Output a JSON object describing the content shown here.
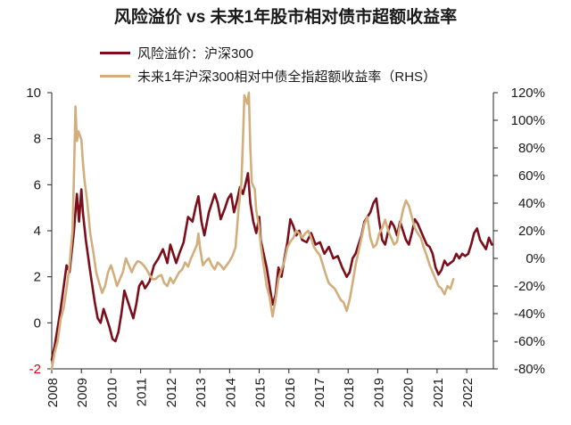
{
  "colors": {
    "series_a": "#7B0E1A",
    "series_b": "#D2AE7C",
    "neg_label": "#E00000",
    "axis": "#222222"
  },
  "chart_data": {
    "type": "line",
    "title": "风险溢价 vs 未来1年股市相对债市超额收益率",
    "legend_position": "top-left",
    "grid": false,
    "x_range": [
      2008,
      2022.9
    ],
    "x_ticks": [
      "2008",
      "2009",
      "2010",
      "2011",
      "2012",
      "2013",
      "2014",
      "2015",
      "2016",
      "2017",
      "2018",
      "2019",
      "2020",
      "2021",
      "2022"
    ],
    "y_left": {
      "range": [
        -2,
        10
      ],
      "ticks": [
        "-2",
        "0",
        "2",
        "4",
        "6",
        "8",
        "10"
      ]
    },
    "y_right": {
      "range": [
        -80,
        120
      ],
      "unit": "%",
      "ticks": [
        "-80%",
        "-60%",
        "-40%",
        "-20%",
        "0%",
        "20%",
        "40%",
        "60%",
        "80%",
        "100%",
        "120%"
      ]
    },
    "series": [
      {
        "name": "风险溢价：沪深300",
        "axis": "left",
        "points": [
          [
            2008.0,
            -1.6
          ],
          [
            2008.1,
            -1.0
          ],
          [
            2008.3,
            0.6
          ],
          [
            2008.5,
            2.5
          ],
          [
            2008.6,
            2.2
          ],
          [
            2008.75,
            4.0
          ],
          [
            2008.85,
            5.6
          ],
          [
            2008.92,
            4.4
          ],
          [
            2009.0,
            5.8
          ],
          [
            2009.05,
            4.8
          ],
          [
            2009.15,
            3.6
          ],
          [
            2009.3,
            2.2
          ],
          [
            2009.45,
            0.9
          ],
          [
            2009.55,
            0.2
          ],
          [
            2009.65,
            0.0
          ],
          [
            2009.75,
            0.6
          ],
          [
            2009.85,
            0.2
          ],
          [
            2009.95,
            -0.2
          ],
          [
            2010.05,
            -0.7
          ],
          [
            2010.15,
            -0.8
          ],
          [
            2010.25,
            -0.4
          ],
          [
            2010.35,
            0.4
          ],
          [
            2010.45,
            1.4
          ],
          [
            2010.55,
            1.0
          ],
          [
            2010.65,
            0.6
          ],
          [
            2010.75,
            0.2
          ],
          [
            2010.85,
            0.8
          ],
          [
            2010.95,
            1.6
          ],
          [
            2011.05,
            1.8
          ],
          [
            2011.15,
            1.5
          ],
          [
            2011.3,
            1.8
          ],
          [
            2011.45,
            2.5
          ],
          [
            2011.6,
            2.8
          ],
          [
            2011.75,
            3.2
          ],
          [
            2011.9,
            2.6
          ],
          [
            2012.0,
            3.4
          ],
          [
            2012.1,
            3.0
          ],
          [
            2012.2,
            2.6
          ],
          [
            2012.3,
            3.0
          ],
          [
            2012.45,
            3.5
          ],
          [
            2012.6,
            4.6
          ],
          [
            2012.75,
            4.4
          ],
          [
            2012.85,
            5.0
          ],
          [
            2012.95,
            5.5
          ],
          [
            2013.05,
            4.4
          ],
          [
            2013.15,
            3.8
          ],
          [
            2013.3,
            4.8
          ],
          [
            2013.5,
            5.6
          ],
          [
            2013.6,
            5.2
          ],
          [
            2013.7,
            4.5
          ],
          [
            2013.85,
            5.0
          ],
          [
            2013.95,
            5.4
          ],
          [
            2014.05,
            5.6
          ],
          [
            2014.15,
            4.8
          ],
          [
            2014.25,
            5.3
          ],
          [
            2014.35,
            5.9
          ],
          [
            2014.45,
            5.6
          ],
          [
            2014.55,
            6.1
          ],
          [
            2014.62,
            6.5
          ],
          [
            2014.7,
            5.2
          ],
          [
            2014.8,
            4.4
          ],
          [
            2014.9,
            3.9
          ],
          [
            2015.0,
            4.6
          ],
          [
            2015.05,
            3.6
          ],
          [
            2015.15,
            3.0
          ],
          [
            2015.25,
            2.4
          ],
          [
            2015.35,
            1.6
          ],
          [
            2015.45,
            0.8
          ],
          [
            2015.55,
            1.2
          ],
          [
            2015.65,
            2.4
          ],
          [
            2015.75,
            2.0
          ],
          [
            2015.85,
            2.8
          ],
          [
            2015.95,
            3.5
          ],
          [
            2016.05,
            4.5
          ],
          [
            2016.15,
            4.2
          ],
          [
            2016.25,
            3.8
          ],
          [
            2016.35,
            4.0
          ],
          [
            2016.45,
            3.6
          ],
          [
            2016.6,
            3.5
          ],
          [
            2016.75,
            3.9
          ],
          [
            2016.9,
            3.4
          ],
          [
            2017.05,
            3.5
          ],
          [
            2017.2,
            3.0
          ],
          [
            2017.35,
            3.3
          ],
          [
            2017.5,
            2.8
          ],
          [
            2017.65,
            2.9
          ],
          [
            2017.8,
            2.4
          ],
          [
            2017.95,
            2.0
          ],
          [
            2018.05,
            2.2
          ],
          [
            2018.15,
            2.8
          ],
          [
            2018.25,
            3.0
          ],
          [
            2018.35,
            3.4
          ],
          [
            2018.45,
            3.8
          ],
          [
            2018.55,
            4.4
          ],
          [
            2018.65,
            4.6
          ],
          [
            2018.75,
            4.8
          ],
          [
            2018.85,
            5.2
          ],
          [
            2018.95,
            5.4
          ],
          [
            2019.05,
            4.4
          ],
          [
            2019.15,
            3.6
          ],
          [
            2019.25,
            3.4
          ],
          [
            2019.35,
            4.0
          ],
          [
            2019.45,
            4.4
          ],
          [
            2019.55,
            4.2
          ],
          [
            2019.65,
            3.8
          ],
          [
            2019.75,
            4.4
          ],
          [
            2019.85,
            4.0
          ],
          [
            2019.95,
            3.6
          ],
          [
            2020.05,
            3.4
          ],
          [
            2020.15,
            3.9
          ],
          [
            2020.25,
            4.5
          ],
          [
            2020.35,
            4.3
          ],
          [
            2020.45,
            4.0
          ],
          [
            2020.55,
            3.7
          ],
          [
            2020.65,
            3.4
          ],
          [
            2020.75,
            3.3
          ],
          [
            2020.85,
            3.0
          ],
          [
            2020.95,
            2.4
          ],
          [
            2021.05,
            2.1
          ],
          [
            2021.15,
            2.3
          ],
          [
            2021.25,
            2.7
          ],
          [
            2021.35,
            2.5
          ],
          [
            2021.45,
            2.6
          ],
          [
            2021.55,
            2.7
          ],
          [
            2021.65,
            3.0
          ],
          [
            2021.75,
            2.8
          ],
          [
            2021.85,
            3.0
          ],
          [
            2021.95,
            2.9
          ],
          [
            2022.05,
            3.0
          ],
          [
            2022.15,
            3.4
          ],
          [
            2022.25,
            3.9
          ],
          [
            2022.35,
            4.1
          ],
          [
            2022.45,
            3.6
          ],
          [
            2022.55,
            3.4
          ],
          [
            2022.65,
            3.2
          ],
          [
            2022.75,
            3.7
          ],
          [
            2022.85,
            3.4
          ]
        ]
      },
      {
        "name": "未来1年沪深300相对中债全指超额收益率（RHS）",
        "axis": "right",
        "points": [
          [
            2008.0,
            -80
          ],
          [
            2008.1,
            -68
          ],
          [
            2008.2,
            -60
          ],
          [
            2008.3,
            -44
          ],
          [
            2008.4,
            -36
          ],
          [
            2008.5,
            -22
          ],
          [
            2008.6,
            -5
          ],
          [
            2008.7,
            20
          ],
          [
            2008.75,
            60
          ],
          [
            2008.8,
            110
          ],
          [
            2008.85,
            85
          ],
          [
            2008.9,
            92
          ],
          [
            2009.0,
            86
          ],
          [
            2009.05,
            70
          ],
          [
            2009.1,
            58
          ],
          [
            2009.2,
            40
          ],
          [
            2009.3,
            18
          ],
          [
            2009.4,
            5
          ],
          [
            2009.5,
            -10
          ],
          [
            2009.6,
            -18
          ],
          [
            2009.7,
            -25
          ],
          [
            2009.8,
            -20
          ],
          [
            2009.9,
            -10
          ],
          [
            2010.0,
            -5
          ],
          [
            2010.1,
            -12
          ],
          [
            2010.2,
            -20
          ],
          [
            2010.3,
            -15
          ],
          [
            2010.4,
            -10
          ],
          [
            2010.5,
            0
          ],
          [
            2010.6,
            -5
          ],
          [
            2010.7,
            -10
          ],
          [
            2010.8,
            -5
          ],
          [
            2010.9,
            -2
          ],
          [
            2011.0,
            -3
          ],
          [
            2011.1,
            -5
          ],
          [
            2011.2,
            -8
          ],
          [
            2011.3,
            -12
          ],
          [
            2011.4,
            -15
          ],
          [
            2011.5,
            -15
          ],
          [
            2011.6,
            -13
          ],
          [
            2011.7,
            -12
          ],
          [
            2011.8,
            -18
          ],
          [
            2011.9,
            -20
          ],
          [
            2012.0,
            -14
          ],
          [
            2012.1,
            -18
          ],
          [
            2012.2,
            -14
          ],
          [
            2012.3,
            -10
          ],
          [
            2012.4,
            -8
          ],
          [
            2012.5,
            -3
          ],
          [
            2012.6,
            -6
          ],
          [
            2012.7,
            0
          ],
          [
            2012.8,
            5
          ],
          [
            2012.9,
            10
          ],
          [
            2012.95,
            18
          ],
          [
            2013.0,
            8
          ],
          [
            2013.1,
            -5
          ],
          [
            2013.2,
            -2
          ],
          [
            2013.3,
            0
          ],
          [
            2013.4,
            -5
          ],
          [
            2013.5,
            -8
          ],
          [
            2013.6,
            -3
          ],
          [
            2013.7,
            -5
          ],
          [
            2013.8,
            -8
          ],
          [
            2013.9,
            -5
          ],
          [
            2014.0,
            -2
          ],
          [
            2014.1,
            2
          ],
          [
            2014.2,
            8
          ],
          [
            2014.3,
            35
          ],
          [
            2014.4,
            55
          ],
          [
            2014.45,
            85
          ],
          [
            2014.5,
            118
          ],
          [
            2014.55,
            115
          ],
          [
            2014.6,
            112
          ],
          [
            2014.65,
            120
          ],
          [
            2014.7,
            80
          ],
          [
            2014.75,
            55
          ],
          [
            2014.85,
            50
          ],
          [
            2014.9,
            35
          ],
          [
            2015.0,
            22
          ],
          [
            2015.05,
            10
          ],
          [
            2015.15,
            -5
          ],
          [
            2015.25,
            -20
          ],
          [
            2015.35,
            -28
          ],
          [
            2015.45,
            -42
          ],
          [
            2015.55,
            -30
          ],
          [
            2015.65,
            -15
          ],
          [
            2015.75,
            -8
          ],
          [
            2015.85,
            -2
          ],
          [
            2015.95,
            8
          ],
          [
            2016.05,
            12
          ],
          [
            2016.15,
            15
          ],
          [
            2016.25,
            20
          ],
          [
            2016.35,
            18
          ],
          [
            2016.45,
            15
          ],
          [
            2016.55,
            18
          ],
          [
            2016.65,
            20
          ],
          [
            2016.75,
            15
          ],
          [
            2016.85,
            8
          ],
          [
            2016.95,
            5
          ],
          [
            2017.05,
            2
          ],
          [
            2017.15,
            -5
          ],
          [
            2017.25,
            -12
          ],
          [
            2017.35,
            -18
          ],
          [
            2017.45,
            -20
          ],
          [
            2017.55,
            -22
          ],
          [
            2017.65,
            -26
          ],
          [
            2017.75,
            -30
          ],
          [
            2017.85,
            -32
          ],
          [
            2017.95,
            -38
          ],
          [
            2018.05,
            -30
          ],
          [
            2018.15,
            -18
          ],
          [
            2018.25,
            -5
          ],
          [
            2018.35,
            5
          ],
          [
            2018.45,
            15
          ],
          [
            2018.55,
            25
          ],
          [
            2018.65,
            30
          ],
          [
            2018.75,
            15
          ],
          [
            2018.85,
            8
          ],
          [
            2018.95,
            10
          ],
          [
            2019.05,
            18
          ],
          [
            2019.15,
            22
          ],
          [
            2019.25,
            28
          ],
          [
            2019.35,
            20
          ],
          [
            2019.45,
            15
          ],
          [
            2019.55,
            10
          ],
          [
            2019.65,
            12
          ],
          [
            2019.75,
            25
          ],
          [
            2019.85,
            35
          ],
          [
            2019.95,
            42
          ],
          [
            2020.05,
            38
          ],
          [
            2020.15,
            30
          ],
          [
            2020.25,
            22
          ],
          [
            2020.35,
            18
          ],
          [
            2020.45,
            15
          ],
          [
            2020.55,
            8
          ],
          [
            2020.65,
            2
          ],
          [
            2020.75,
            -5
          ],
          [
            2020.85,
            -10
          ],
          [
            2020.95,
            -15
          ],
          [
            2021.05,
            -20
          ],
          [
            2021.15,
            -22
          ],
          [
            2021.25,
            -26
          ],
          [
            2021.35,
            -20
          ],
          [
            2021.45,
            -22
          ],
          [
            2021.55,
            -15
          ]
        ]
      }
    ]
  }
}
